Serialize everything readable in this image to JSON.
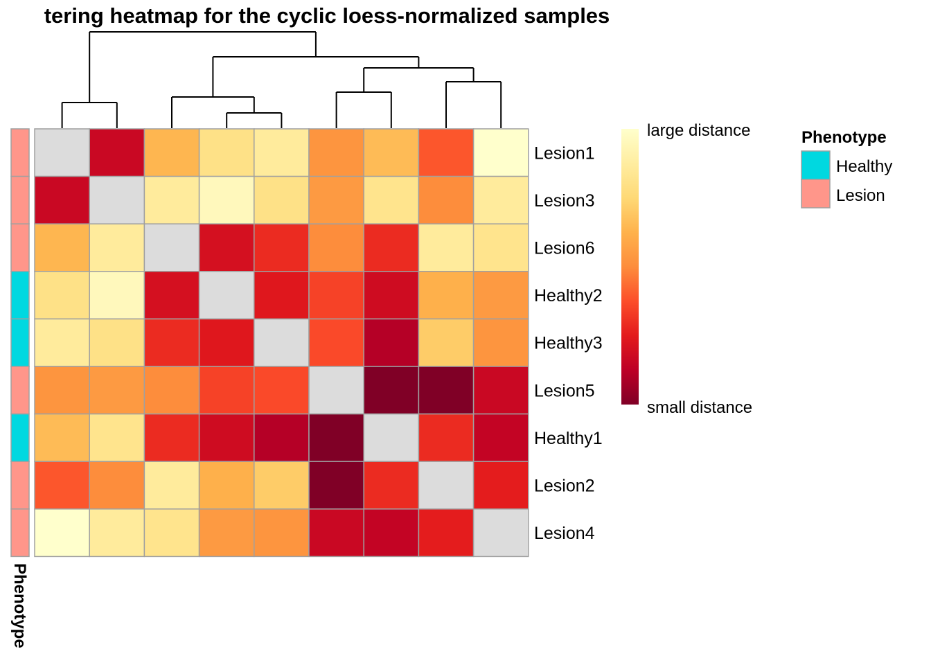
{
  "chart_data": {
    "type": "heatmap",
    "title": "tering heatmap for the cyclic loess-normalized samples",
    "rows": [
      "Lesion1",
      "Lesion3",
      "Lesion6",
      "Healthy2",
      "Healthy3",
      "Lesion5",
      "Healthy1",
      "Lesion2",
      "Lesion4"
    ],
    "phenotype": [
      "Lesion",
      "Lesion",
      "Lesion",
      "Healthy",
      "Healthy",
      "Lesion",
      "Healthy",
      "Lesion",
      "Lesion"
    ],
    "values": [
      [
        null,
        0.08,
        0.6,
        0.78,
        0.85,
        0.48,
        0.62,
        0.33,
        1.0
      ],
      [
        0.08,
        null,
        0.85,
        0.95,
        0.78,
        0.5,
        0.8,
        0.45,
        0.85
      ],
      [
        0.6,
        0.85,
        null,
        0.12,
        0.22,
        0.45,
        0.22,
        0.85,
        0.8
      ],
      [
        0.78,
        0.95,
        0.12,
        null,
        0.16,
        0.28,
        0.1,
        0.58,
        0.5
      ],
      [
        0.85,
        0.78,
        0.22,
        0.16,
        null,
        0.3,
        0.02,
        0.68,
        0.48
      ],
      [
        0.48,
        0.5,
        0.45,
        0.28,
        0.3,
        null,
        -0.1,
        -0.1,
        0.08
      ],
      [
        0.62,
        0.8,
        0.22,
        0.1,
        0.02,
        -0.1,
        null,
        0.22,
        0.06
      ],
      [
        0.33,
        0.45,
        0.85,
        0.58,
        0.68,
        -0.1,
        0.22,
        null,
        0.18
      ],
      [
        1.0,
        0.85,
        0.8,
        0.5,
        0.48,
        0.08,
        0.06,
        0.18,
        null
      ]
    ],
    "colorbar": {
      "high_label": "large distance",
      "low_label": "small distance"
    },
    "annotation": {
      "name": "Phenotype",
      "legend_title": "Phenotype",
      "levels": [
        "Healthy",
        "Lesion"
      ],
      "colors": {
        "Healthy": "#00D8E0",
        "Lesion": "#FF968A"
      }
    },
    "diagonal_color": "#DCDCDC",
    "palette": [
      "#800026",
      "#BD0026",
      "#E31A1C",
      "#FC4E2A",
      "#FD8D3C",
      "#FEB24C",
      "#FED976",
      "#FFEDA0",
      "#FFFFCC"
    ],
    "dendrogram": [
      {
        "leaves": [
          0,
          1
        ]
      },
      {
        "leaves": [
          3,
          4
        ]
      },
      {
        "leaves": [
          5,
          6
        ]
      },
      {
        "leaves": [
          7,
          8
        ]
      },
      {
        "children": [
          [
            5,
            6
          ],
          [
            7,
            8
          ]
        ]
      },
      {
        "children": [
          [
            2
          ],
          [
            3,
            4
          ]
        ]
      },
      {
        "children": [
          [
            2,
            3,
            4
          ],
          [
            5,
            6,
            7,
            8
          ]
        ]
      },
      {
        "children": [
          [
            0,
            1
          ],
          [
            2,
            3,
            4,
            5,
            6,
            7,
            8
          ]
        ]
      }
    ]
  }
}
